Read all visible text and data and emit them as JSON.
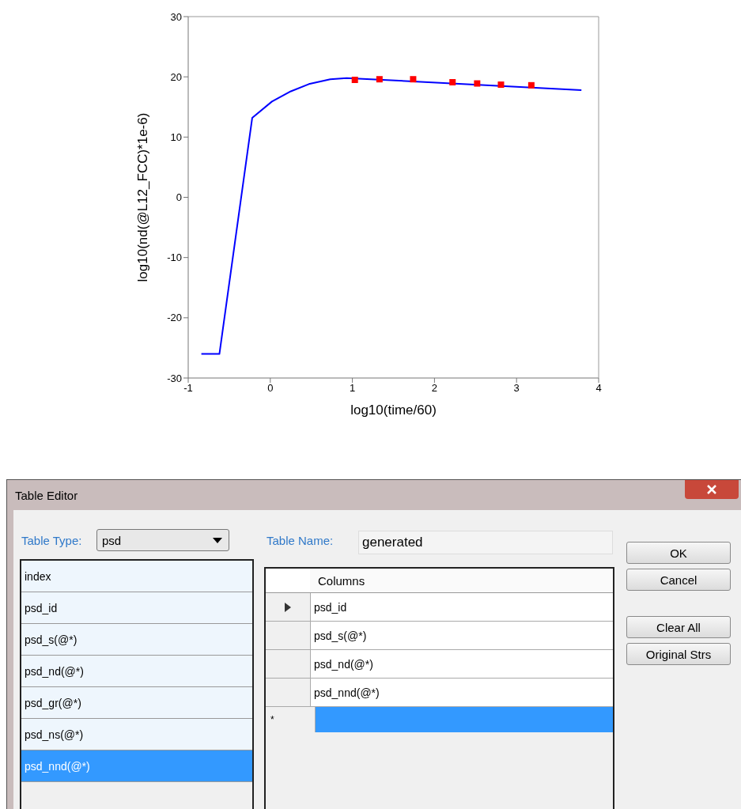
{
  "chart_data": [
    {
      "type": "line",
      "xlabel": "log10(time/60)",
      "ylabel": "log10(nd(@L12_FCC)*1e-6)",
      "xlim": [
        -1,
        4
      ],
      "xticks": [
        -1,
        0,
        1,
        2,
        3,
        4
      ],
      "ylim": [
        -30,
        30
      ],
      "yticks": [
        -30,
        -20,
        -10,
        0,
        10,
        20,
        30
      ],
      "grid": false,
      "series": [
        {
          "type": "line",
          "color": "#0000ff",
          "marker": "none",
          "x": [
            -0.84,
            -0.62,
            -0.22,
            0.02,
            0.25,
            0.47,
            0.73,
            0.93,
            3.79
          ],
          "values": [
            -26.0,
            -26.0,
            13.2,
            15.9,
            17.6,
            18.8,
            19.6,
            19.8,
            17.8
          ]
        },
        {
          "type": "scatter",
          "color": "#ff0000",
          "marker": "square",
          "x": [
            1.03,
            1.33,
            1.74,
            2.22,
            2.52,
            2.81,
            3.18
          ],
          "values": [
            19.5,
            19.6,
            19.6,
            19.1,
            18.9,
            18.7,
            18.6
          ]
        }
      ]
    },
    {
      "type": "other",
      "title": "Table Editor",
      "annotations": [
        "Table Type:",
        "psd",
        "Table Name:",
        "generated",
        "OK",
        "Cancel",
        "Clear All",
        "Original Strs",
        "Columns",
        "index",
        "psd_id",
        "psd_s(@*)",
        "psd_nd(@*)",
        "psd_gr(@*)",
        "psd_ns(@*)",
        "psd_nnd(@*)",
        "psd_id",
        "psd_s(@*)",
        "psd_nd(@*)",
        "psd_nnd(@*)",
        "*"
      ]
    }
  ]
}
